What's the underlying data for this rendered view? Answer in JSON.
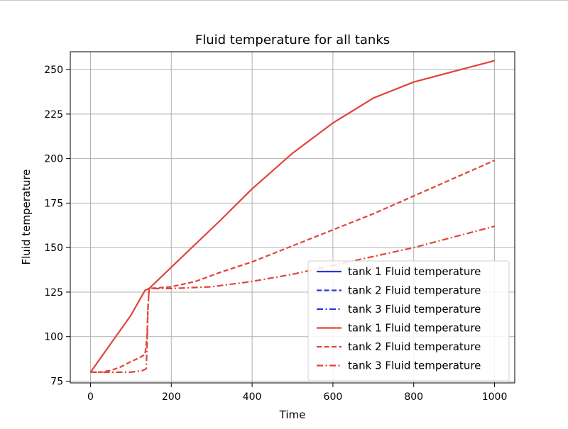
{
  "chart_data": {
    "type": "line",
    "title": "Fluid temperature for all tanks",
    "xlabel": "Time",
    "ylabel": "Fluid temperature",
    "xlim": [
      -50,
      1050
    ],
    "ylim": [
      74,
      260
    ],
    "xticks": [
      0,
      200,
      400,
      600,
      800,
      1000
    ],
    "xtick_labels": [
      "0",
      "200",
      "400",
      "600",
      "800",
      "1000"
    ],
    "yticks": [
      75,
      100,
      125,
      150,
      175,
      200,
      225,
      250
    ],
    "ytick_labels": [
      "75",
      "100",
      "125",
      "150",
      "175",
      "200",
      "225",
      "250"
    ],
    "grid": true,
    "legend_position": "lower-right",
    "series": [
      {
        "name": "tank 1 Fluid temperature",
        "color": "#2838d8",
        "style": "solid",
        "x": [],
        "y": []
      },
      {
        "name": "tank 2 Fluid temperature",
        "color": "#2838d8",
        "style": "dashed",
        "x": [],
        "y": []
      },
      {
        "name": "tank 3 Fluid temperature",
        "color": "#2838d8",
        "style": "dashdot",
        "x": [],
        "y": []
      },
      {
        "name": "tank 1 Fluid temperature",
        "color": "#e0453a",
        "style": "solid",
        "x": [
          0,
          50,
          100,
          135,
          145,
          200,
          260,
          320,
          400,
          500,
          600,
          700,
          800,
          900,
          1000
        ],
        "y": [
          80,
          96,
          112,
          126,
          127,
          139,
          152,
          165,
          183,
          203,
          220,
          234,
          243,
          249,
          255
        ]
      },
      {
        "name": "tank 2 Fluid temperature",
        "color": "#e0453a",
        "style": "dashed",
        "x": [
          0,
          25,
          50,
          75,
          100,
          120,
          135,
          140,
          142,
          145,
          200,
          260,
          320,
          400,
          500,
          600,
          700,
          800,
          900,
          1000
        ],
        "y": [
          80,
          80,
          81,
          83,
          86,
          88,
          90,
          100,
          115,
          127,
          128,
          131,
          136,
          142,
          151,
          160,
          169,
          179,
          189,
          199
        ]
      },
      {
        "name": "tank 3 Fluid temperature",
        "color": "#e0453a",
        "style": "dashdot",
        "x": [
          0,
          20,
          50,
          100,
          130,
          138,
          140,
          142,
          145,
          200,
          300,
          400,
          500,
          600,
          700,
          800,
          900,
          1000
        ],
        "y": [
          80,
          80,
          80,
          80,
          81,
          82,
          95,
          115,
          127,
          127,
          128,
          131,
          135,
          140,
          145,
          150,
          156,
          162
        ]
      }
    ]
  }
}
